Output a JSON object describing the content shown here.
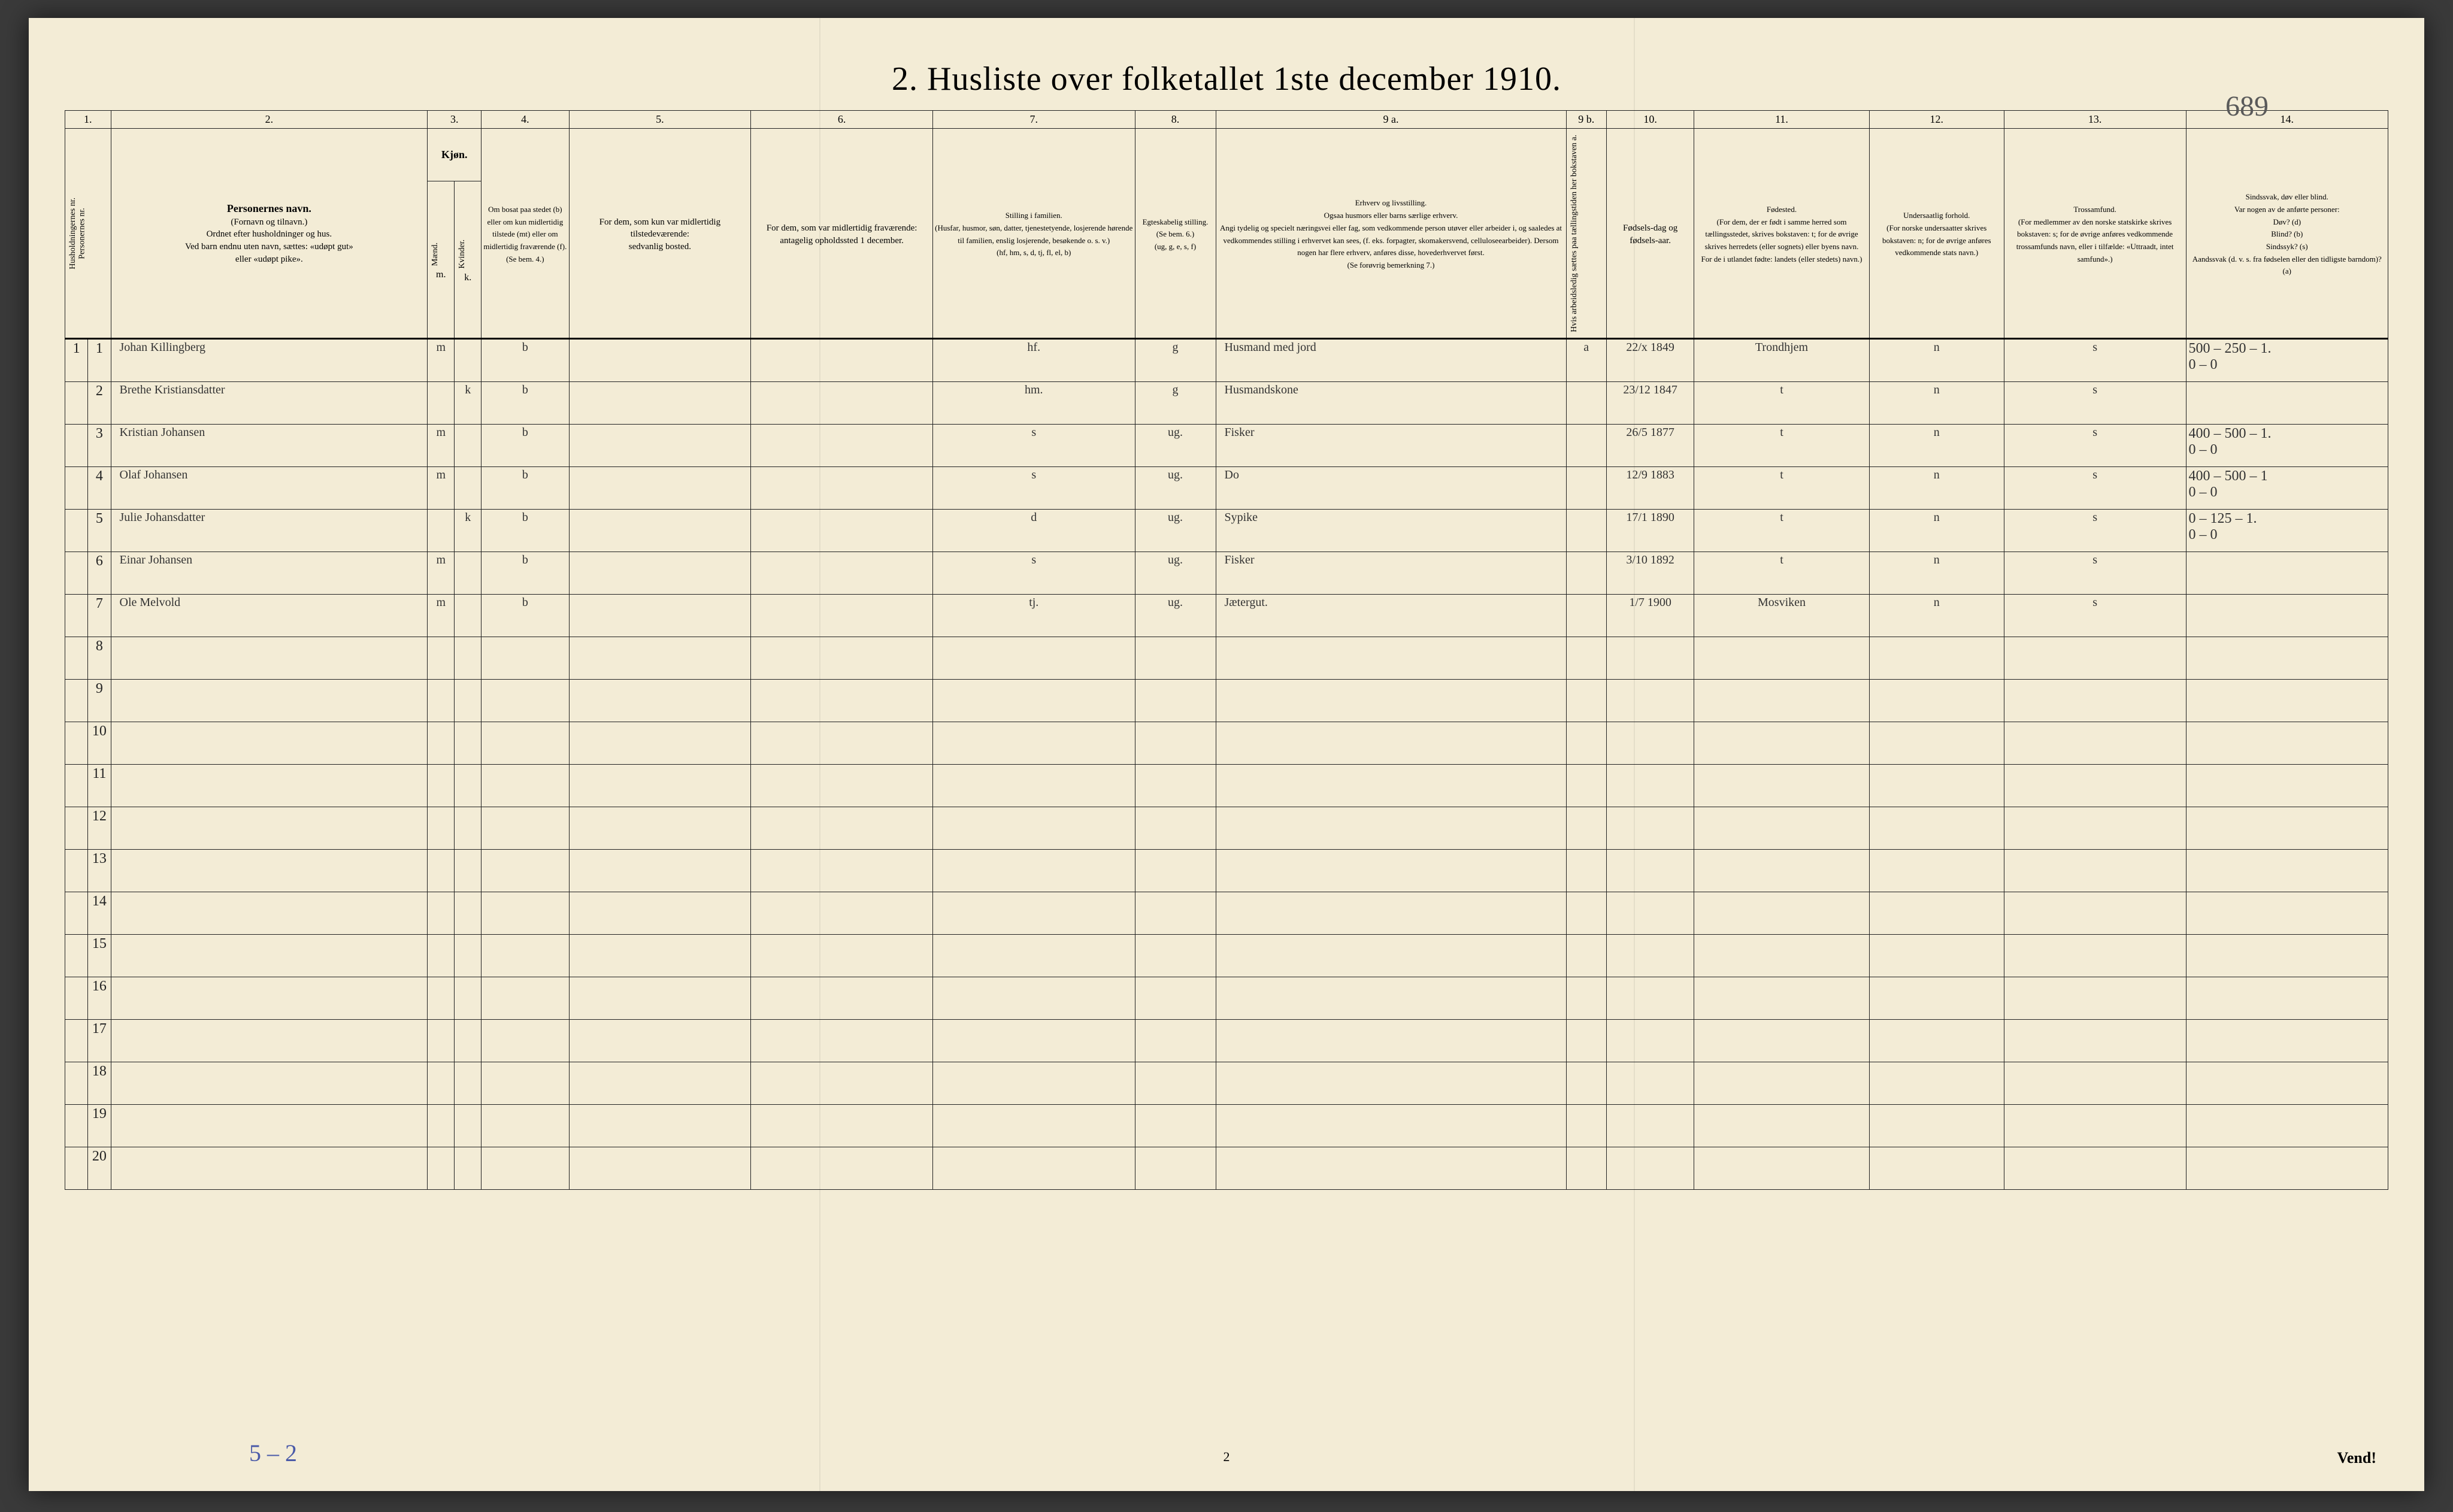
{
  "title": "2.  Husliste over folketallet 1ste december 1910.",
  "handPageNumber": "689",
  "footerCenter": "2",
  "footerLeft": "5 – 2",
  "vend": "Vend!",
  "columnNumbers": [
    "1.",
    "2.",
    "3.",
    "4.",
    "5.",
    "6.",
    "7.",
    "8.",
    "9 a.",
    "9 b.",
    "10.",
    "11.",
    "12.",
    "13.",
    "14."
  ],
  "headers": {
    "c1": "Husholdningernes nr.\nPersonernes nr.",
    "c2_title": "Personernes navn.",
    "c2_sub": "(Fornavn og tilnavn.)\nOrdnet efter husholdninger og hus.\nVed barn endnu uten navn, sættes: «udøpt gut»\neller «udøpt pike».",
    "c3_title": "Kjøn.",
    "c3_m": "Mænd.",
    "c3_k": "Kvinder.",
    "c3_mk": "m.  k.",
    "c4": "Om bosat paa stedet (b) eller om kun midlertidig tilstede (mt) eller om midlertidig fraværende (f).\n(Se bem. 4.)",
    "c5": "For dem, som kun var midlertidig tilstedeværende:\nsedvanlig bosted.",
    "c6": "For dem, som var midlertidig fraværende:\nantagelig opholdssted 1 december.",
    "c7": "Stilling i familien.\n(Husfar, husmor, søn, datter, tjenestetyende, losjerende hørende til familien, enslig losjerende, besøkende o. s. v.)\n(hf, hm, s, d, tj, fl, el,  b)",
    "c8": "Egteskabelig stilling.\n(Se bem. 6.)\n(ug, g, e, s, f)",
    "c9a": "Erhverv og livsstilling.\nOgsaa husmors eller barns særlige erhverv.\nAngi tydelig og specielt næringsvei eller fag, som vedkommende person utøver eller arbeider i, og saaledes at vedkommendes stilling i erhvervet kan sees, (f. eks. forpagter, skomakersvend, celluloseearbeider).  Dersom nogen har flere erhverv, anføres disse, hovederhvervet først.\n(Se forøvrig bemerkning 7.)",
    "c9b": "Hvis arbeidsledig sættes paa tællingstiden her bokstaven   a.",
    "c10": "Fødsels-dag og fødsels-aar.",
    "c11": "Fødested.\n(For dem, der er født i samme herred som tællingsstedet, skrives bokstaven: t; for de øvrige skrives herredets (eller sognets) eller byens navn.\nFor de i utlandet fødte: landets (eller stedets) navn.)",
    "c12": "Undersaatlig forhold.\n(For norske undersaatter skrives bokstaven: n; for de øvrige anføres vedkommende stats navn.)",
    "c13": "Trossamfund.\n(For medlemmer av den norske statskirke skrives bokstaven: s; for de øvrige anføres vedkommende trossamfunds navn, eller i tilfælde: «Uttraadt, intet samfund».)",
    "c14": "Sindssvak, døv eller blind.\nVar nogen av de anførte personer:\nDøv?      (d)\nBlind?     (b)\nSindssyk? (s)\nAandssvak (d. v. s. fra fødselen eller den tidligste barndom)?  (a)"
  },
  "widths": {
    "c1a": 34,
    "c1b": 34,
    "c2": 470,
    "c3a": 40,
    "c3b": 40,
    "c4": 130,
    "c5": 270,
    "c6": 270,
    "c7": 300,
    "c8": 120,
    "c9a": 520,
    "c9b": 60,
    "c10": 130,
    "c11": 260,
    "c12": 200,
    "c13": 270,
    "c14": 300
  },
  "rows": [
    {
      "hh": "1",
      "pn": "1",
      "name": "Johan Killingberg",
      "m": "m",
      "k": "",
      "c4": "b",
      "c5": "",
      "c6": "",
      "c7": "hf.",
      "c8": "g",
      "c9a": "Husmand med jord",
      "c9b": "a",
      "c10": "22/x 1849",
      "c11": "Trondhjem",
      "c12": "n",
      "c13": "s",
      "c14": "500 – 250 – 1.\n0   –  0"
    },
    {
      "hh": "",
      "pn": "2",
      "name": "Brethe Kristiansdatter",
      "m": "",
      "k": "k",
      "c4": "b",
      "c5": "",
      "c6": "",
      "c7": "hm.",
      "c8": "g",
      "c9a": "Husmandskone",
      "c9b": "",
      "c10": "23/12 1847",
      "c11": "t",
      "c12": "n",
      "c13": "s",
      "c14": ""
    },
    {
      "hh": "",
      "pn": "3",
      "name": "Kristian Johansen",
      "m": "m",
      "k": "",
      "c4": "b",
      "c5": "",
      "c6": "",
      "c7": "s",
      "c8": "ug.",
      "c9a": "Fisker",
      "c9b": "",
      "c10": "26/5 1877",
      "c11": "t",
      "c12": "n",
      "c13": "s",
      "c14": "400 – 500 – 1.\n0  –  0"
    },
    {
      "hh": "",
      "pn": "4",
      "name": "Olaf Johansen",
      "m": "m",
      "k": "",
      "c4": "b",
      "c5": "",
      "c6": "",
      "c7": "s",
      "c8": "ug.",
      "c9a": "Do",
      "c9b": "",
      "c10": "12/9 1883",
      "c11": "t",
      "c12": "n",
      "c13": "s",
      "c14": "400 – 500 – 1\n0  –  0"
    },
    {
      "hh": "",
      "pn": "5",
      "name": "Julie Johansdatter",
      "m": "",
      "k": "k",
      "c4": "b",
      "c5": "",
      "c6": "",
      "c7": "d",
      "c8": "ug.",
      "c9a": "Sypike",
      "c9b": "",
      "c10": "17/1 1890",
      "c11": "t",
      "c12": "n",
      "c13": "s",
      "c14": "0 – 125 – 1.\n0  –  0"
    },
    {
      "hh": "",
      "pn": "6",
      "name": "Einar Johansen",
      "m": "m",
      "k": "",
      "c4": "b",
      "c5": "",
      "c6": "",
      "c7": "s",
      "c8": "ug.",
      "c9a": "Fisker",
      "c9b": "",
      "c10": "3/10 1892",
      "c11": "t",
      "c12": "n",
      "c13": "s",
      "c14": ""
    },
    {
      "hh": "",
      "pn": "7",
      "name": "Ole Melvold",
      "m": "m",
      "k": "",
      "c4": "b",
      "c5": "",
      "c6": "",
      "c7": "tj.",
      "c8": "ug.",
      "c9a": "Jætergut.",
      "c9b": "",
      "c10": "1/7 1900",
      "c11": "Mosviken",
      "c12": "n",
      "c13": "s",
      "c14": ""
    }
  ],
  "emptyRowStart": 8,
  "emptyRowEnd": 20
}
